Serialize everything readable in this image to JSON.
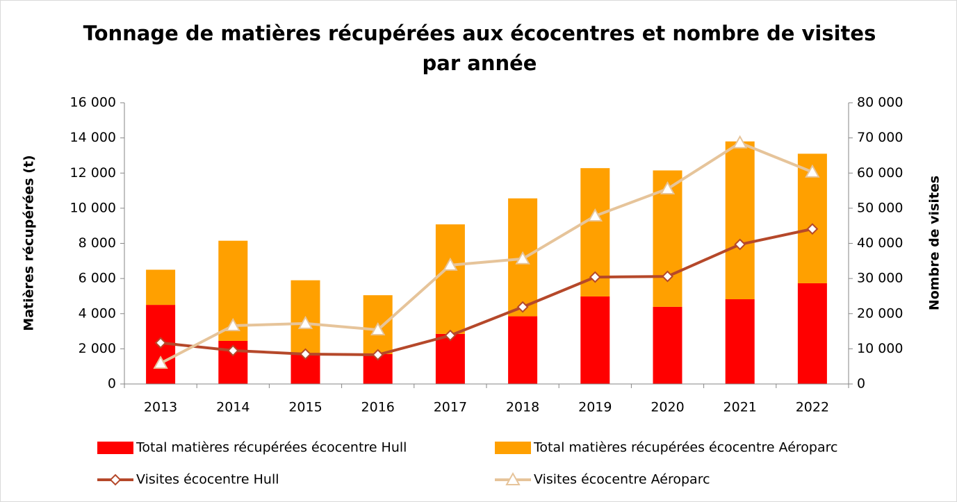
{
  "chart_data": {
    "type": "bar",
    "title": "Tonnage de matières récupérées aux écocentres et nombre de visites par année",
    "title_lines": [
      "Tonnage de matières récupérées aux écocentres et nombre de visites",
      "par année"
    ],
    "y_label": "Matières récupérées (t)",
    "y2_label": "Nombre de visites",
    "stacked": true,
    "legend": "bottom",
    "categories": [
      "2013",
      "2014",
      "2015",
      "2016",
      "2017",
      "2018",
      "2019",
      "2020",
      "2021",
      "2022"
    ],
    "series": [
      {
        "name": "Total matières récupérées écocentre Hull",
        "type": "bar",
        "color": "#ff0000",
        "values": [
          4500,
          2450,
          1750,
          1700,
          2850,
          3850,
          4980,
          4390,
          4820,
          5730
        ]
      },
      {
        "name": "Total matières récupérées écocentre Aéroparc",
        "type": "bar",
        "color": "#ffa000",
        "values": [
          2000,
          5700,
          4150,
          3350,
          6230,
          6710,
          7300,
          7760,
          8980,
          7370
        ]
      },
      {
        "name": "Visites écocentre Hull",
        "type": "line",
        "axis": "y2",
        "marker": "diamond",
        "color": "#b5482a",
        "values": [
          11700,
          9500,
          8500,
          8300,
          13800,
          21900,
          30400,
          30600,
          39700,
          44100
        ]
      },
      {
        "name": "Visites écocentre Aéroparc",
        "type": "line",
        "axis": "y2",
        "marker": "triangle",
        "color": "#e6c49a",
        "values": [
          5900,
          16600,
          17200,
          15400,
          33800,
          35600,
          47800,
          55500,
          68600,
          60300
        ]
      }
    ],
    "ylim": [
      0,
      16000
    ],
    "yticks": [
      0,
      {
        "value": 2000,
        "label": "2 000"
      },
      {
        "value": 4000,
        "label": "4 000"
      },
      {
        "value": 6000,
        "label": "6 000"
      },
      {
        "value": 8000,
        "label": "8 000"
      },
      {
        "value": 10000,
        "label": "10 000"
      },
      {
        "value": 12000,
        "label": "12 000"
      },
      {
        "value": 14000,
        "label": "14 000"
      },
      {
        "value": 16000,
        "label": "16 000"
      }
    ],
    "y2lim": [
      0,
      80000
    ],
    "y2ticks": [
      0,
      {
        "value": 10000,
        "label": "10 000"
      },
      {
        "value": 20000,
        "label": "20 000"
      },
      {
        "value": 30000,
        "label": "30 000"
      },
      {
        "value": 40000,
        "label": "40 000"
      },
      {
        "value": 50000,
        "label": "50 000"
      },
      {
        "value": 60000,
        "label": "60 000"
      },
      {
        "value": 70000,
        "label": "70 000"
      },
      {
        "value": 80000,
        "label": "80 000"
      }
    ],
    "grid": false
  }
}
